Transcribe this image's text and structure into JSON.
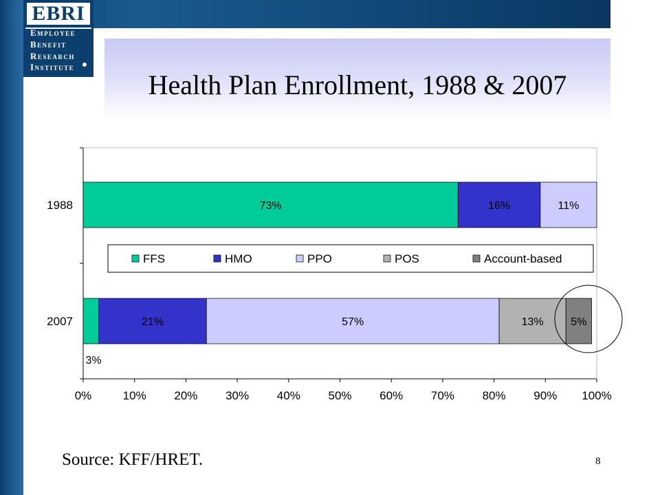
{
  "logo": {
    "acronym": "EBRI",
    "lines": [
      "Employee",
      "Benefit",
      "Research",
      "Institute"
    ]
  },
  "slide": {
    "title": "Health Plan Enrollment, 1988 & 2007",
    "source": "Source: KFF/HRET.",
    "page_number": "8"
  },
  "colors": {
    "left_bar": "#1f5d93",
    "top_bar": "#0e4a7c",
    "title_band": "#d4d4f7"
  },
  "chart_data": {
    "type": "bar",
    "orientation": "horizontal",
    "stacked": true,
    "categories": [
      "1988",
      "2007"
    ],
    "series": [
      {
        "name": "FFS",
        "color": "#00cc99",
        "values": [
          73,
          3
        ],
        "labels": [
          "73%",
          "3%"
        ]
      },
      {
        "name": "HMO",
        "color": "#3333cc",
        "values": [
          16,
          21
        ],
        "labels": [
          "16%",
          "21%"
        ]
      },
      {
        "name": "PPO",
        "color": "#ccccff",
        "values": [
          11,
          57
        ],
        "labels": [
          "11%",
          "57%"
        ]
      },
      {
        "name": "POS",
        "color": "#b2b2b2",
        "values": [
          0,
          13
        ],
        "labels": [
          "",
          "13%"
        ]
      },
      {
        "name": "Account-based",
        "color": "#808080",
        "values": [
          0,
          5
        ],
        "labels": [
          "",
          "5%"
        ]
      }
    ],
    "xlim": [
      0,
      100
    ],
    "x_ticks": [
      "0%",
      "10%",
      "20%",
      "30%",
      "40%",
      "50%",
      "60%",
      "70%",
      "80%",
      "90%",
      "100%"
    ],
    "legend_position": "center",
    "grid": false,
    "annotation": "circle around the Account-based segment of 2007"
  }
}
